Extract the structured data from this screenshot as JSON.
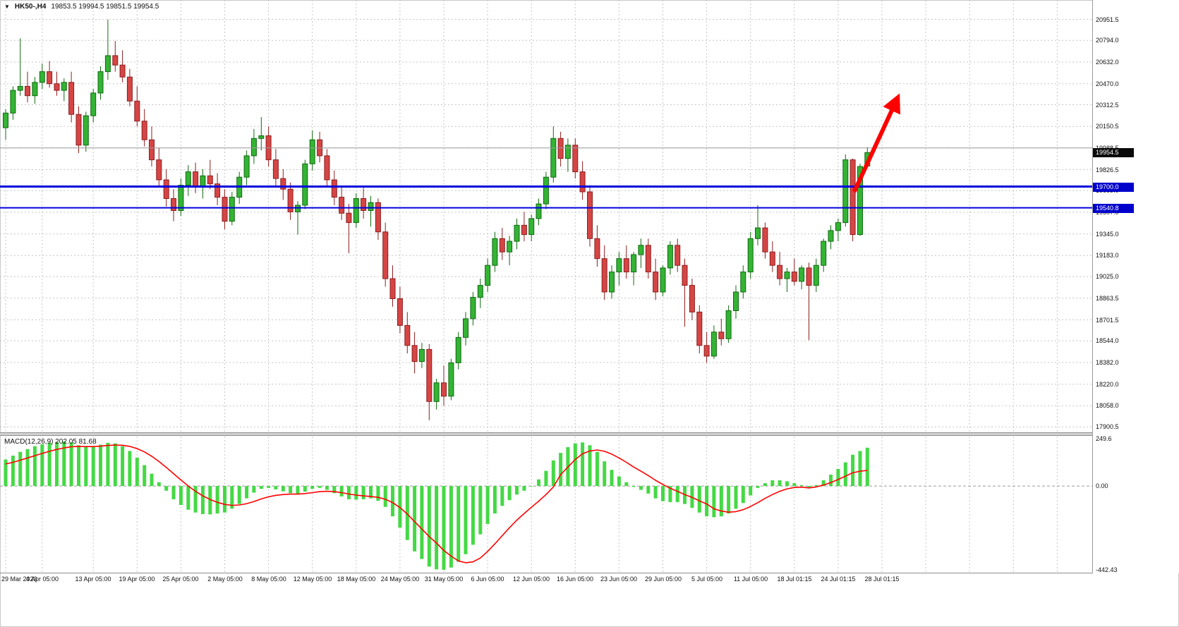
{
  "window": {
    "symbol": "HK50-,H4",
    "ohlc": "19853.5 19994.5 19851.5 19954.5",
    "dropdown_icon": "▼"
  },
  "colors": {
    "background": "#ffffff",
    "grid": "#c6c6c6",
    "up_fill": "#34b334",
    "up_border": "#0f6b0f",
    "down_fill": "#d64545",
    "down_border": "#8d1f1f",
    "hline_blue": "#0000dd",
    "gray_line": "#9c9c9c",
    "line_badge_bg": "#0000cc",
    "current_badge_bg": "#0a0a0a",
    "macd_hist": "#44d944",
    "macd_signal": "#ff0000",
    "arrow": "#ff0000"
  },
  "price_axis": {
    "labels": [
      "20951.5",
      "20794.0",
      "20632.0",
      "20470.0",
      "20312.5",
      "20150.5",
      "19988.5",
      "19826.5",
      "19669.0",
      "19507.0",
      "19345.0",
      "19183.0",
      "19025.0",
      "18863.5",
      "18701.5",
      "18544.0",
      "18382.0",
      "18220.0",
      "18058.0",
      "17900.5"
    ],
    "current": {
      "price": 19954.5,
      "text": "19954.5"
    }
  },
  "overlays": {
    "hlines": [
      {
        "price": 19988.5,
        "color": "#9c9c9c",
        "width": 1,
        "badge": null
      },
      {
        "price": 19700.0,
        "color": "#0000dd",
        "width": 3,
        "badge": "19700.0"
      },
      {
        "price": 19540.8,
        "color": "#0000dd",
        "width": 2,
        "badge": "19540.8"
      }
    ],
    "arrow": {
      "color": "#ff0000",
      "from": {
        "slot": 116.2,
        "price": 19660
      },
      "to": {
        "slot": 121.6,
        "price": 20300
      }
    }
  },
  "time_axis": {
    "ticks": [
      {
        "slot": 0,
        "label": "29 Mar 2023"
      },
      {
        "slot": 5,
        "label": "4 Apr 05:00"
      },
      {
        "slot": 12,
        "label": "13 Apr 05:00"
      },
      {
        "slot": 18,
        "label": "19 Apr 05:00"
      },
      {
        "slot": 24,
        "label": "25 Apr 05:00"
      },
      {
        "slot": 30,
        "label": "2 May 05:00"
      },
      {
        "slot": 36,
        "label": "8 May 05:00"
      },
      {
        "slot": 42,
        "label": "12 May 05:00"
      },
      {
        "slot": 48,
        "label": "18 May 05:00"
      },
      {
        "slot": 54,
        "label": "24 May 05:00"
      },
      {
        "slot": 60,
        "label": "31 May 05:00"
      },
      {
        "slot": 66,
        "label": "6 Jun 05:00"
      },
      {
        "slot": 72,
        "label": "12 Jun 05:00"
      },
      {
        "slot": 78,
        "label": "16 Jun 05:00"
      },
      {
        "slot": 84,
        "label": "23 Jun 05:00"
      },
      {
        "slot": 90,
        "label": "29 Jun 05:00"
      },
      {
        "slot": 96,
        "label": "5 Jul 05:00"
      },
      {
        "slot": 102,
        "label": "11 Jul 05:00"
      },
      {
        "slot": 108,
        "label": "18 Jul 01:15"
      },
      {
        "slot": 114,
        "label": "24 Jul 01:15"
      },
      {
        "slot": 120,
        "label": "28 Jul 01:15"
      }
    ],
    "extra_grid_slots": [
      126,
      132,
      138,
      144
    ]
  },
  "macd_panel": {
    "label": "MACD(12,26,9) 202.05 81.68",
    "axis": {
      "max": "249.6",
      "zero": "0.00",
      "min": "-442.43"
    }
  },
  "chart_data": {
    "type": "candlestick",
    "symbol": "HK50-",
    "timeframe": "H4",
    "date_range": "29 Mar 2023 - 28 Jul 2023",
    "ylim": [
      17900.5,
      20951.5
    ],
    "grid": true,
    "last_bar_ohlc": {
      "open": 19853.5,
      "high": 19994.5,
      "low": 19851.5,
      "close": 19954.5
    },
    "annotations": {
      "horizontal_lines": [
        19988.5,
        19700.0,
        19540.8
      ],
      "arrow": "bullish-breakout-up"
    },
    "candles": [
      [
        20140,
        20280,
        20050,
        20250
      ],
      [
        20250,
        20450,
        20200,
        20420
      ],
      [
        20420,
        20810,
        20380,
        20450
      ],
      [
        20450,
        20560,
        20330,
        20380
      ],
      [
        20380,
        20520,
        20320,
        20480
      ],
      [
        20480,
        20620,
        20430,
        20560
      ],
      [
        20560,
        20640,
        20440,
        20470
      ],
      [
        20470,
        20560,
        20380,
        20420
      ],
      [
        20420,
        20510,
        20340,
        20480
      ],
      [
        20480,
        20560,
        20180,
        20240
      ],
      [
        20240,
        20300,
        19950,
        20010
      ],
      [
        20010,
        20260,
        19960,
        20230
      ],
      [
        20230,
        20430,
        20180,
        20400
      ],
      [
        20400,
        20600,
        20350,
        20560
      ],
      [
        20560,
        20950,
        20500,
        20680
      ],
      [
        20680,
        20790,
        20560,
        20610
      ],
      [
        20610,
        20720,
        20480,
        20520
      ],
      [
        20520,
        20580,
        20300,
        20340
      ],
      [
        20340,
        20450,
        20150,
        20190
      ],
      [
        20190,
        20280,
        20000,
        20050
      ],
      [
        20050,
        20150,
        19850,
        19900
      ],
      [
        19900,
        19990,
        19700,
        19750
      ],
      [
        19750,
        19830,
        19550,
        19610
      ],
      [
        19610,
        19680,
        19440,
        19520
      ],
      [
        19520,
        19760,
        19480,
        19710
      ],
      [
        19710,
        19860,
        19630,
        19810
      ],
      [
        19810,
        19880,
        19650,
        19700
      ],
      [
        19700,
        19830,
        19610,
        19780
      ],
      [
        19780,
        19900,
        19680,
        19720
      ],
      [
        19720,
        19800,
        19560,
        19620
      ],
      [
        19620,
        19680,
        19380,
        19440
      ],
      [
        19440,
        19660,
        19410,
        19620
      ],
      [
        19620,
        19810,
        19570,
        19770
      ],
      [
        19770,
        19970,
        19710,
        19930
      ],
      [
        19930,
        20130,
        19870,
        20060
      ],
      [
        20060,
        20220,
        19970,
        20080
      ],
      [
        20080,
        20150,
        19850,
        19900
      ],
      [
        19900,
        19980,
        19700,
        19760
      ],
      [
        19760,
        19830,
        19600,
        19680
      ],
      [
        19680,
        19730,
        19450,
        19510
      ],
      [
        19510,
        19590,
        19340,
        19560
      ],
      [
        19560,
        19900,
        19530,
        19870
      ],
      [
        19870,
        20120,
        19820,
        20050
      ],
      [
        20050,
        20110,
        19880,
        19930
      ],
      [
        19930,
        19980,
        19700,
        19750
      ],
      [
        19750,
        19820,
        19560,
        19620
      ],
      [
        19620,
        19700,
        19450,
        19500
      ],
      [
        19500,
        19570,
        19200,
        19430
      ],
      [
        19430,
        19650,
        19390,
        19610
      ],
      [
        19610,
        19690,
        19460,
        19520
      ],
      [
        19520,
        19630,
        19400,
        19580
      ],
      [
        19580,
        19610,
        19300,
        19360
      ],
      [
        19360,
        19430,
        18950,
        19010
      ],
      [
        19010,
        19110,
        18800,
        18860
      ],
      [
        18860,
        18950,
        18600,
        18660
      ],
      [
        18660,
        18760,
        18450,
        18510
      ],
      [
        18510,
        18610,
        18300,
        18390
      ],
      [
        18390,
        18530,
        18340,
        18480
      ],
      [
        18480,
        18520,
        17950,
        18090
      ],
      [
        18090,
        18260,
        18030,
        18230
      ],
      [
        18230,
        18360,
        18060,
        18130
      ],
      [
        18130,
        18410,
        18100,
        18380
      ],
      [
        18380,
        18610,
        18330,
        18570
      ],
      [
        18570,
        18760,
        18510,
        18710
      ],
      [
        18710,
        18910,
        18660,
        18870
      ],
      [
        18870,
        19010,
        18790,
        18960
      ],
      [
        18960,
        19160,
        18910,
        19110
      ],
      [
        19110,
        19360,
        19060,
        19310
      ],
      [
        19310,
        19390,
        19150,
        19210
      ],
      [
        19210,
        19330,
        19110,
        19290
      ],
      [
        19290,
        19460,
        19230,
        19410
      ],
      [
        19410,
        19510,
        19290,
        19340
      ],
      [
        19340,
        19490,
        19290,
        19460
      ],
      [
        19460,
        19610,
        19410,
        19570
      ],
      [
        19570,
        19810,
        19530,
        19770
      ],
      [
        19770,
        20150,
        19730,
        20060
      ],
      [
        20060,
        20110,
        19850,
        19910
      ],
      [
        19910,
        20060,
        19810,
        20010
      ],
      [
        20010,
        20060,
        19760,
        19810
      ],
      [
        19810,
        19890,
        19600,
        19660
      ],
      [
        19660,
        19710,
        19250,
        19310
      ],
      [
        19310,
        19410,
        19100,
        19160
      ],
      [
        19160,
        19260,
        18850,
        18910
      ],
      [
        18910,
        19110,
        18860,
        19060
      ],
      [
        19060,
        19210,
        18960,
        19160
      ],
      [
        19160,
        19260,
        19010,
        19060
      ],
      [
        19060,
        19210,
        18960,
        19190
      ],
      [
        19190,
        19310,
        19090,
        19260
      ],
      [
        19260,
        19310,
        19010,
        19060
      ],
      [
        19060,
        19160,
        18850,
        18910
      ],
      [
        18910,
        19110,
        18880,
        19090
      ],
      [
        19090,
        19290,
        19040,
        19260
      ],
      [
        19260,
        19310,
        19060,
        19110
      ],
      [
        19110,
        19160,
        18650,
        18960
      ],
      [
        18960,
        19010,
        18700,
        18760
      ],
      [
        18760,
        18810,
        18450,
        18510
      ],
      [
        18510,
        18610,
        18380,
        18430
      ],
      [
        18430,
        18660,
        18410,
        18610
      ],
      [
        18610,
        18710,
        18510,
        18560
      ],
      [
        18560,
        18810,
        18530,
        18770
      ],
      [
        18770,
        18960,
        18710,
        18910
      ],
      [
        18910,
        19110,
        18860,
        19060
      ],
      [
        19060,
        19360,
        19010,
        19310
      ],
      [
        19310,
        19560,
        19260,
        19390
      ],
      [
        19390,
        19430,
        19160,
        19210
      ],
      [
        19210,
        19290,
        19060,
        19110
      ],
      [
        19110,
        19210,
        18960,
        19010
      ],
      [
        19010,
        19090,
        18910,
        19060
      ],
      [
        19060,
        19160,
        18960,
        18990
      ],
      [
        18990,
        19110,
        18930,
        19090
      ],
      [
        19090,
        19130,
        18550,
        18960
      ],
      [
        18960,
        19160,
        18910,
        19110
      ],
      [
        19110,
        19310,
        19060,
        19290
      ],
      [
        19290,
        19410,
        19230,
        19370
      ],
      [
        19370,
        19460,
        19290,
        19430
      ],
      [
        19430,
        19940,
        19400,
        19900
      ],
      [
        19900,
        19910,
        19290,
        19340
      ],
      [
        19340,
        19870,
        19330,
        19850
      ],
      [
        19853.5,
        19994.5,
        19851.5,
        19954.5
      ]
    ],
    "macd": {
      "params": "12,26,9",
      "value": 202.05,
      "signal_value": 81.68,
      "ylim": [
        -442.43,
        249.6
      ],
      "histogram": [
        140,
        160,
        180,
        195,
        210,
        220,
        228,
        232,
        235,
        230,
        215,
        205,
        210,
        218,
        228,
        225,
        210,
        185,
        150,
        110,
        65,
        20,
        -25,
        -70,
        -100,
        -125,
        -140,
        -148,
        -150,
        -145,
        -140,
        -120,
        -95,
        -65,
        -35,
        -15,
        -10,
        -18,
        -28,
        -38,
        -42,
        -30,
        -15,
        -10,
        -20,
        -38,
        -55,
        -70,
        -72,
        -70,
        -65,
        -78,
        -110,
        -160,
        -220,
        -285,
        -345,
        -385,
        -425,
        -440,
        -442,
        -430,
        -400,
        -360,
        -310,
        -255,
        -200,
        -145,
        -105,
        -75,
        -45,
        -25,
        0,
        35,
        80,
        135,
        175,
        205,
        225,
        230,
        215,
        180,
        130,
        85,
        50,
        20,
        -5,
        -20,
        -40,
        -65,
        -80,
        -85,
        -85,
        -95,
        -115,
        -140,
        -160,
        -165,
        -160,
        -145,
        -120,
        -90,
        -50,
        -10,
        15,
        30,
        30,
        25,
        15,
        5,
        -10,
        5,
        30,
        60,
        90,
        125,
        165,
        185,
        202.05
      ],
      "signal": [
        116,
        125,
        136,
        148,
        160,
        172,
        183,
        193,
        201,
        207,
        209,
        208,
        208,
        210,
        214,
        216,
        215,
        209,
        197,
        180,
        157,
        129,
        98,
        65,
        32,
        0,
        -28,
        -52,
        -71,
        -86,
        -97,
        -102,
        -100,
        -93,
        -82,
        -68,
        -57,
        -49,
        -45,
        -43,
        -43,
        -40,
        -35,
        -30,
        -28,
        -30,
        -35,
        -42,
        -48,
        -52,
        -55,
        -60,
        -70,
        -88,
        -114,
        -148,
        -188,
        -227,
        -267,
        -301,
        -340,
        -370,
        -395,
        -405,
        -400,
        -380,
        -345,
        -305,
        -262,
        -220,
        -180,
        -145,
        -112,
        -80,
        -45,
        -5,
        60,
        100,
        140,
        170,
        185,
        190,
        183,
        168,
        148,
        125,
        100,
        78,
        55,
        30,
        8,
        -12,
        -28,
        -45,
        -60,
        -78,
        -95,
        -120,
        -132,
        -138,
        -135,
        -125,
        -108,
        -88,
        -65,
        -45,
        -28,
        -15,
        -8,
        -6,
        -10,
        -5,
        5,
        18,
        34,
        52,
        70,
        78,
        82
      ]
    }
  }
}
